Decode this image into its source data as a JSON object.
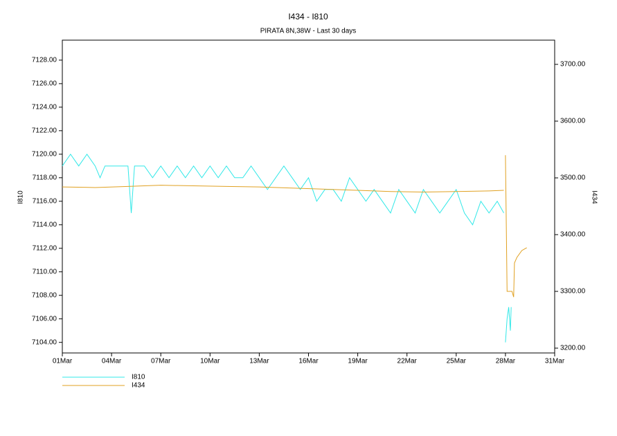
{
  "chart_data": {
    "type": "line",
    "title": "I434 - I810",
    "subtitle": "PIRATA 8N,38W - Last 30 days",
    "y_label": "I810",
    "y2_label": "I434",
    "xlim": [
      1,
      31
    ],
    "xticks": [
      {
        "value": 1,
        "label": "01Mar"
      },
      {
        "value": 4,
        "label": "04Mar"
      },
      {
        "value": 7,
        "label": "07Mar"
      },
      {
        "value": 10,
        "label": "10Mar"
      },
      {
        "value": 13,
        "label": "13Mar"
      },
      {
        "value": 16,
        "label": "16Mar"
      },
      {
        "value": 19,
        "label": "19Mar"
      },
      {
        "value": 22,
        "label": "22Mar"
      },
      {
        "value": 25,
        "label": "25Mar"
      },
      {
        "value": 28,
        "label": "28Mar"
      },
      {
        "value": 31,
        "label": "31Mar"
      }
    ],
    "ylim": [
      7103.1,
      7129.7
    ],
    "yticks": [
      {
        "value": 7104,
        "label": "7104.00"
      },
      {
        "value": 7106,
        "label": "7106.00"
      },
      {
        "value": 7108,
        "label": "7108.00"
      },
      {
        "value": 7110,
        "label": "7110.00"
      },
      {
        "value": 7112,
        "label": "7112.00"
      },
      {
        "value": 7114,
        "label": "7114.00"
      },
      {
        "value": 7116,
        "label": "7116.00"
      },
      {
        "value": 7118,
        "label": "7118.00"
      },
      {
        "value": 7120,
        "label": "7120.00"
      },
      {
        "value": 7122,
        "label": "7122.00"
      },
      {
        "value": 7124,
        "label": "7124.00"
      },
      {
        "value": 7126,
        "label": "7126.00"
      },
      {
        "value": 7128,
        "label": "7128.00"
      }
    ],
    "y2lim": [
      3191.5,
      3742.7
    ],
    "y2ticks": [
      {
        "value": 3200,
        "label": "3200.00"
      },
      {
        "value": 3300,
        "label": "3300.00"
      },
      {
        "value": 3400,
        "label": "3400.00"
      },
      {
        "value": 3500,
        "label": "3500.00"
      },
      {
        "value": 3600,
        "label": "3600.00"
      },
      {
        "value": 3700,
        "label": "3700.00"
      }
    ],
    "series": [
      {
        "name": "I810",
        "color": "#30e8e8",
        "x": [
          1.0,
          1.5,
          2.0,
          2.5,
          3.0,
          3.3,
          3.6,
          4.0,
          4.5,
          5.0,
          5.2,
          5.4,
          6.0,
          6.5,
          7.0,
          7.5,
          8.0,
          8.5,
          9.0,
          9.5,
          10.0,
          10.5,
          11.0,
          11.5,
          12.0,
          12.5,
          13.0,
          13.5,
          14.0,
          14.5,
          15.0,
          15.5,
          16.0,
          16.5,
          17.0,
          17.5,
          18.0,
          18.5,
          19.0,
          19.5,
          20.0,
          20.5,
          21.0,
          21.5,
          22.0,
          22.5,
          23.0,
          23.5,
          24.0,
          24.5,
          25.0,
          25.5,
          26.0,
          26.5,
          27.0,
          27.5,
          27.9,
          27.95,
          28.0,
          28.1,
          28.2,
          28.3,
          28.35
        ],
        "values": [
          7119,
          7120,
          7119,
          7120,
          7119,
          7118,
          7119,
          7119,
          7119,
          7119,
          7115,
          7119,
          7119,
          7118,
          7119,
          7118,
          7119,
          7118,
          7119,
          7118,
          7119,
          7118,
          7119,
          7118,
          7118,
          7119,
          7118,
          7117,
          7118,
          7119,
          7118,
          7117,
          7118,
          7116,
          7117,
          7117,
          7116,
          7118,
          7117,
          7116,
          7117,
          7116,
          7115,
          7117,
          7116,
          7115,
          7117,
          7116,
          7115,
          7116,
          7117,
          7115,
          7114,
          7116,
          7115,
          7116,
          7115,
          null,
          7104,
          7106,
          7107,
          7105,
          7107
        ]
      },
      {
        "name": "I434",
        "color": "#e0a020",
        "axis": "y2",
        "x": [
          1.0,
          3.0,
          5.0,
          7.0,
          9.0,
          11.0,
          13.0,
          15.0,
          17.0,
          19.0,
          21.0,
          23.0,
          25.0,
          27.0,
          27.9,
          27.95,
          28.0,
          28.05,
          28.1,
          28.4,
          28.5,
          28.55,
          28.7,
          29.0,
          29.3
        ],
        "values": [
          3484,
          3483,
          3485,
          3487,
          3486,
          3485,
          3484,
          3482,
          3480,
          3478,
          3476,
          3475,
          3476,
          3477,
          3478,
          null,
          3540,
          3420,
          3300,
          3300,
          3290,
          3350,
          3360,
          3372,
          3377
        ]
      }
    ]
  }
}
